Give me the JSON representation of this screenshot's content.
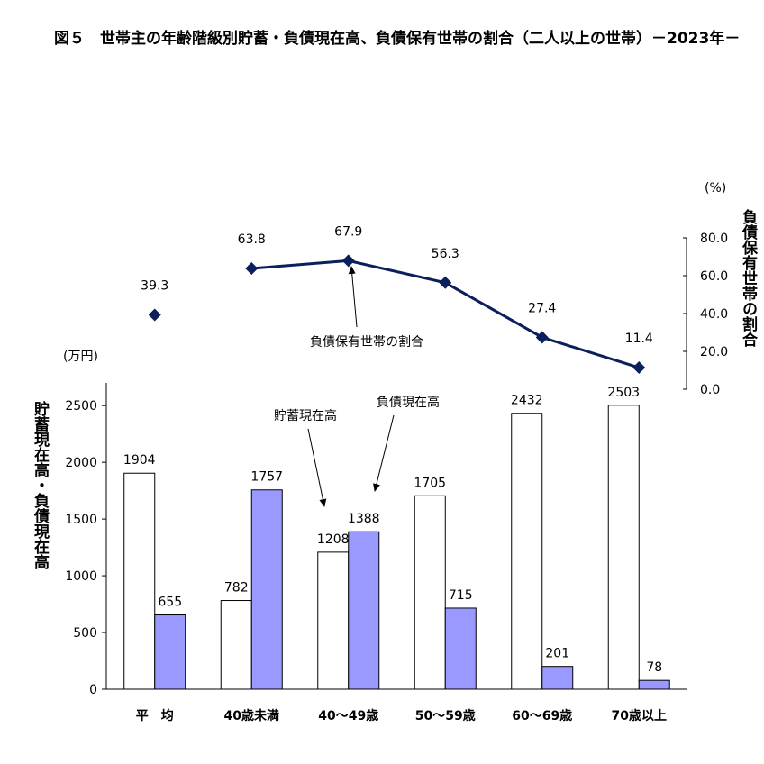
{
  "title": "図５　世帯主の年齢階級別貯蓄・負債現在高、負債保有世帯の割合（二人以上の世帯）－2023年－",
  "left_axis": {
    "unit": "(万円)",
    "label": "貯蓄現在高・負債現在高",
    "ticks": [
      "0",
      "500",
      "1000",
      "1500",
      "2000",
      "2500"
    ]
  },
  "right_axis": {
    "unit": "(%)",
    "label": "負債保有世帯の割合",
    "ticks": [
      "0.0",
      "20.0",
      "40.0",
      "60.0",
      "80.0"
    ]
  },
  "annotations": {
    "savings": "貯蓄現在高",
    "debt": "負債現在高",
    "ratio": "負債保有世帯の割合"
  },
  "colors": {
    "savings_fill": "#ffffff",
    "debt_fill": "#9999ff",
    "line": "#0a1f5c"
  },
  "chart_data": {
    "type": "bar",
    "categories": [
      "平　均",
      "40歳未満",
      "40～49歳",
      "50～59歳",
      "60～69歳",
      "70歳以上"
    ],
    "series": [
      {
        "name": "貯蓄現在高",
        "values": [
          1904,
          782,
          1208,
          1705,
          2432,
          2503
        ]
      },
      {
        "name": "負債現在高",
        "values": [
          655,
          1757,
          1388,
          715,
          201,
          78
        ]
      }
    ],
    "line_series": {
      "name": "負債保有世帯の割合",
      "values": [
        39.3,
        63.8,
        67.9,
        56.3,
        27.4,
        11.4
      ],
      "labels": [
        "39.3",
        "63.8",
        "67.9",
        "56.3",
        "27.4",
        "11.4"
      ],
      "connect_from_index": 1
    },
    "ylim": [
      0,
      2700
    ],
    "y2lim": [
      0,
      80
    ],
    "grid": false
  }
}
